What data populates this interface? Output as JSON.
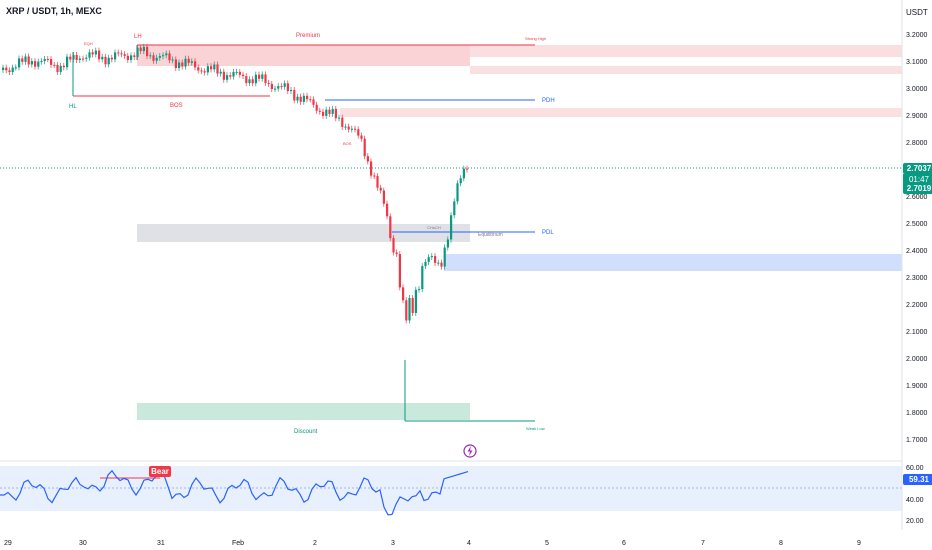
{
  "header": {
    "symbol": "XRP / USDT, 1h, MEXC",
    "currency": "USDT"
  },
  "price_axis": [
    "3.2000",
    "3.1000",
    "3.0000",
    "2.9000",
    "2.8000",
    "2.6000",
    "2.5000",
    "2.4000",
    "2.3000",
    "2.2000",
    "2.1000",
    "2.0000",
    "1.9000",
    "1.8000",
    "1.7000"
  ],
  "last_price": {
    "value": "2.7037",
    "countdown": "01:47",
    "value2": "2.7019"
  },
  "time_axis": [
    "29",
    "30",
    "31",
    "Feb",
    "2",
    "3",
    "4",
    "5",
    "6",
    "7",
    "8",
    "9"
  ],
  "annotations": {
    "lh": "LH",
    "hl": "HL",
    "premium": "Premium",
    "strong_high": "Strong High",
    "bos": "BOS",
    "pdh": "PDH",
    "pdl": "PDL",
    "equilibrium": "Equilibrium",
    "choch": "CHoCH",
    "discount": "Discount",
    "weak_low": "Weak Low",
    "eqh": "EQH",
    "bos_small": "BOS",
    "bear": "Bear"
  },
  "rsi": {
    "value": "59.31",
    "levels": [
      "60.00",
      "40.00",
      "20.00"
    ]
  },
  "colors": {
    "up": "#089981",
    "down": "#f23645",
    "rsi": "#2962ff"
  }
}
